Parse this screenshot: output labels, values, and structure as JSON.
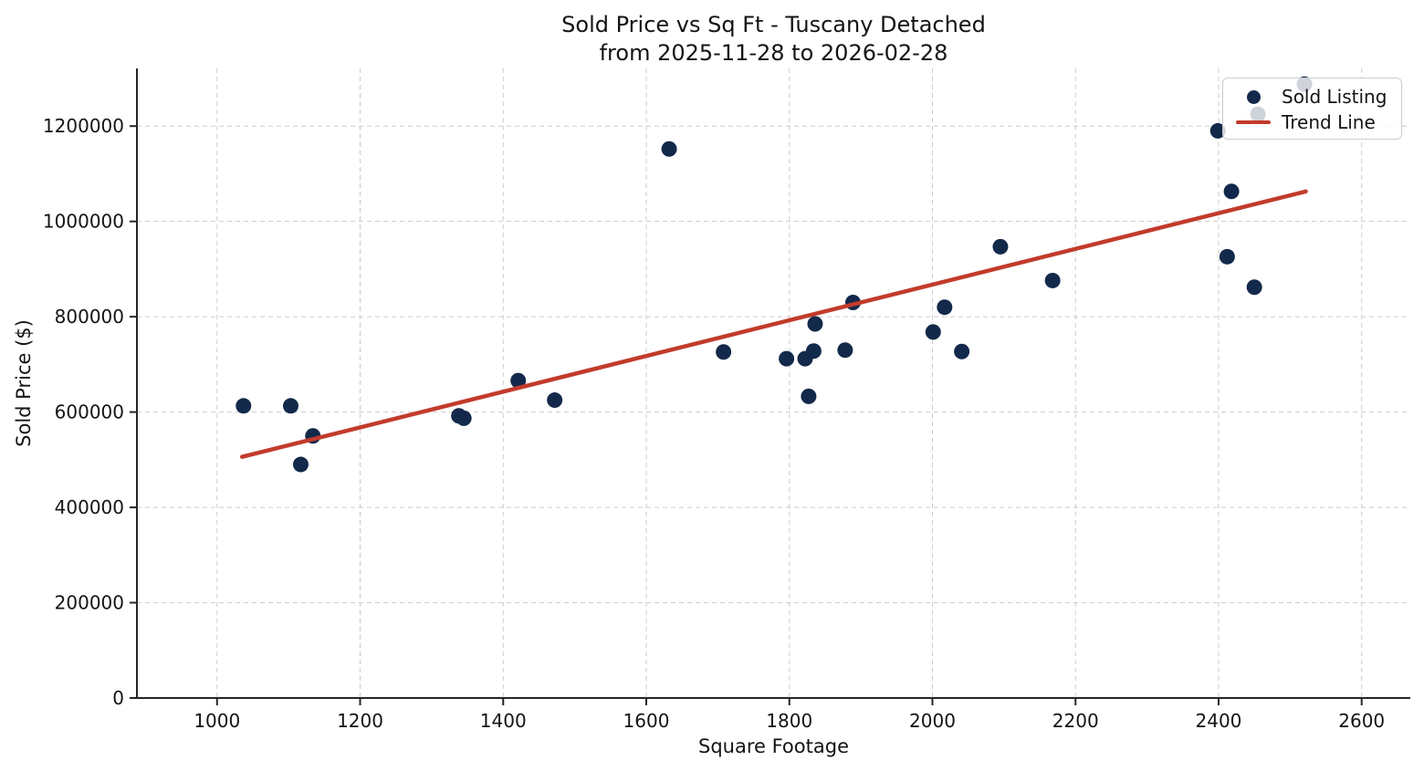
{
  "chart_data": {
    "type": "scatter",
    "title_line1": "Sold Price vs Sq Ft - Tuscany Detached",
    "title_line2": "from 2025-11-28 to 2026-02-28",
    "xlabel": "Square Footage",
    "ylabel": "Sold Price ($)",
    "xlim": [
      888,
      2668
    ],
    "ylim": [
      0,
      1321000
    ],
    "xticks": [
      1000,
      1200,
      1400,
      1600,
      1800,
      2000,
      2200,
      2400,
      2600
    ],
    "yticks": [
      0,
      200000,
      400000,
      600000,
      800000,
      1000000,
      1200000
    ],
    "grid": true,
    "grid_style": "dashed",
    "legend_position": "upper-right",
    "colors": {
      "point": "#13294B",
      "trend": "#C23B2B",
      "grid": "#CCCCCC",
      "axis": "#262626",
      "text": "#141414",
      "legend_border": "#CCCCCC",
      "legend_bg": "rgba(255,255,255,0.8)"
    },
    "series": [
      {
        "name": "Sold Listing",
        "type": "scatter",
        "points": [
          [
            1037,
            613000
          ],
          [
            1103,
            613000
          ],
          [
            1117,
            490000
          ],
          [
            1134,
            550000
          ],
          [
            1338,
            592000
          ],
          [
            1345,
            587000
          ],
          [
            1421,
            666000
          ],
          [
            1472,
            625000
          ],
          [
            1632,
            1152000
          ],
          [
            1708,
            726000
          ],
          [
            1796,
            712000
          ],
          [
            1822,
            712000
          ],
          [
            1827,
            633000
          ],
          [
            1834,
            728000
          ],
          [
            1836,
            785000
          ],
          [
            1878,
            730000
          ],
          [
            1889,
            830000
          ],
          [
            2001,
            768000
          ],
          [
            2017,
            820000
          ],
          [
            2041,
            727000
          ],
          [
            2095,
            947000
          ],
          [
            2168,
            876000
          ],
          [
            2399,
            1190000
          ],
          [
            2412,
            926000
          ],
          [
            2418,
            1063000
          ],
          [
            2450,
            862000
          ],
          [
            2455,
            1225000
          ],
          [
            2520,
            1288000
          ]
        ]
      },
      {
        "name": "Trend Line",
        "type": "line",
        "points": [
          [
            1035,
            506000
          ],
          [
            2522,
            1063000
          ]
        ]
      }
    ],
    "legend": {
      "entries": [
        {
          "label": "Sold Listing",
          "marker": "dot"
        },
        {
          "label": "Trend Line",
          "marker": "line"
        }
      ]
    }
  }
}
